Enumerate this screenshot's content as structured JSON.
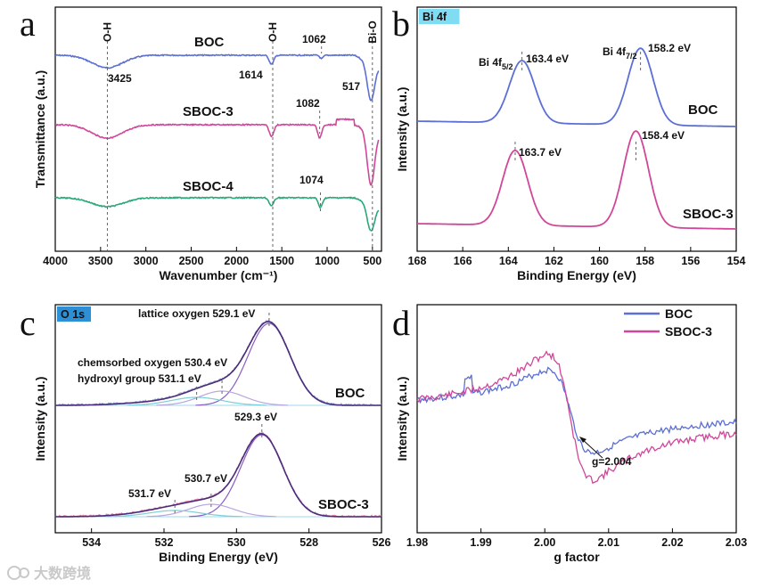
{
  "colors": {
    "blue": "#5b6fd4",
    "magenta": "#d0479a",
    "green": "#2aa878",
    "dark": "#4a2c7a",
    "tagBlue": "#2d8fd5",
    "tagCyan": "#7fdcf2",
    "watermark": "#c9c9c9"
  },
  "watermark": "大数跨境",
  "chart_data": [
    {
      "panel": "a",
      "type": "line",
      "xlabel": "Wavenumber (cm⁻¹)",
      "ylabel": "Transmittance (a.u.)",
      "xlim": [
        4000,
        400
      ],
      "xticks": [
        "4000",
        "3500",
        "3000",
        "2500",
        "2000",
        "1500",
        "1000",
        "500"
      ],
      "series": [
        {
          "name": "BOC",
          "color": "blue",
          "offset": 2.5
        },
        {
          "name": "SBOC-3",
          "color": "magenta",
          "offset": 1.25
        },
        {
          "name": "SBOC-4",
          "color": "green",
          "offset": 0.0
        }
      ],
      "annotations": [
        {
          "text": "3425",
          "x": 3425
        },
        {
          "text": "1614",
          "x": 1614
        },
        {
          "text": "1062",
          "x": 1062
        },
        {
          "text": "517",
          "x": 517
        },
        {
          "text": "1082",
          "x": 1082
        },
        {
          "text": "1074",
          "x": 1074
        }
      ],
      "vlines": [
        {
          "label": "O-H",
          "x": 3425
        },
        {
          "label": "O-H",
          "x": 1600
        },
        {
          "label": "Bi-O",
          "x": 500
        }
      ]
    },
    {
      "panel": "b",
      "tag": "Bi 4f",
      "type": "line",
      "xlabel": "Binding Energy (eV)",
      "ylabel": "Intensity (a.u.)",
      "xlim": [
        168,
        154
      ],
      "xticks": [
        "168",
        "166",
        "164",
        "162",
        "160",
        "158",
        "156",
        "154"
      ],
      "series": [
        {
          "name": "BOC",
          "color": "blue",
          "peaks": [
            163.4,
            158.2
          ]
        },
        {
          "name": "SBOC-3",
          "color": "magenta",
          "peaks": [
            163.7,
            158.4
          ]
        }
      ],
      "annotations": [
        {
          "text": "Bi 4f",
          "sub": "5/2",
          "value": "163.4 eV"
        },
        {
          "text": "Bi 4f",
          "sub": "7/2",
          "value": "158.2 eV"
        },
        {
          "value": "163.7 eV"
        },
        {
          "value": "158.4 eV"
        }
      ]
    },
    {
      "panel": "c",
      "tag": "O 1s",
      "type": "line",
      "xlabel": "Binding Energy (eV)",
      "ylabel": "Intensity (a.u.)",
      "xlim": [
        535,
        526
      ],
      "xticks": [
        "534",
        "532",
        "530",
        "528",
        "526"
      ],
      "series": [
        {
          "name": "BOC",
          "color": "blue",
          "components": [
            529.1,
            530.4,
            531.1
          ]
        },
        {
          "name": "SBOC-3",
          "color": "magenta",
          "components": [
            529.3,
            530.7,
            531.7
          ]
        }
      ],
      "annotations": [
        "lattice oxygen 529.1 eV",
        "chemsorbed oxygen 530.4 eV",
        "hydroxyl group 531.1 eV",
        "529.3 eV",
        "530.7 eV",
        "531.7 eV"
      ]
    },
    {
      "panel": "d",
      "type": "line",
      "xlabel": "g factor",
      "ylabel": "Intensity (a.u.)",
      "xlim": [
        1.98,
        2.03
      ],
      "xticks": [
        "1.98",
        "1.99",
        "2.00",
        "2.01",
        "2.02",
        "2.03"
      ],
      "legend": "top",
      "series": [
        {
          "name": "BOC",
          "color": "blue"
        },
        {
          "name": "SBOC-3",
          "color": "magenta"
        }
      ],
      "annotations": [
        {
          "text": "g=2.004",
          "x": 2.004
        }
      ]
    }
  ]
}
